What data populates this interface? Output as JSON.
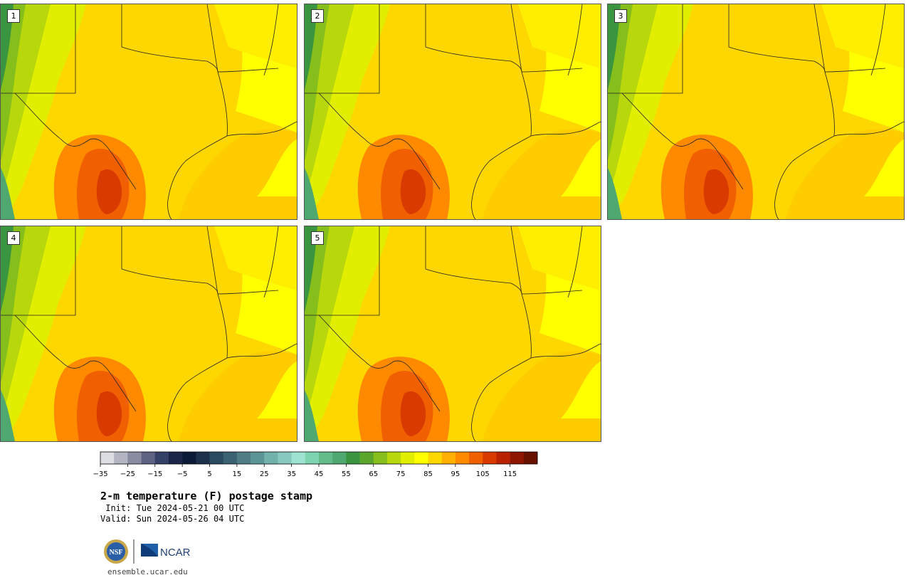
{
  "panels": [
    {
      "label": "1"
    },
    {
      "label": "2"
    },
    {
      "label": "3"
    },
    {
      "label": "4"
    },
    {
      "label": "5"
    }
  ],
  "colorbar": {
    "ticks": [
      "−35",
      "−25",
      "−15",
      "−5",
      "5",
      "15",
      "25",
      "35",
      "45",
      "55",
      "65",
      "75",
      "85",
      "95",
      "105",
      "115"
    ],
    "colors": [
      "#dcdde3",
      "#b4b5c3",
      "#8a8da1",
      "#5d6282",
      "#354066",
      "#1b2648",
      "#0d1a36",
      "#1c3049",
      "#2a4a5f",
      "#3b6272",
      "#4e7d86",
      "#5c9596",
      "#72b2ad",
      "#87c9be",
      "#9ee3d2",
      "#7ed3b0",
      "#63bb8c",
      "#4ea86f",
      "#3a9540",
      "#5aa52c",
      "#86be1c",
      "#b8d70c",
      "#e2ee00",
      "#ffff00",
      "#ffd700",
      "#ffb000",
      "#ff8a00",
      "#f06000",
      "#d83a00",
      "#b82200",
      "#8e1500",
      "#6a1000"
    ]
  },
  "title": "2-m temperature (F) postage stamp",
  "init": " Init: Tue 2024-05-21 00 UTC",
  "valid": "Valid: Sun 2024-05-26 04 UTC",
  "footer_url": "ensemble.ucar.edu",
  "logos": {
    "nsf": "NSF",
    "ncar": "NCAR"
  }
}
